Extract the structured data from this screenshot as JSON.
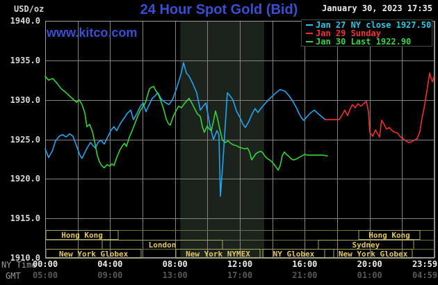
{
  "header": {
    "unit_label": "USD/oz",
    "title": "24 Hour Spot Gold (Bid)",
    "datetime": "January 30, 2023 17:35",
    "watermark": "www.kitco.com"
  },
  "colors": {
    "kitco_blue": "#3a4fd0",
    "cyan_series": "#22a6f2",
    "red_series": "#f23030",
    "green_series": "#35d339",
    "band": "#1c231c",
    "grid": "#848484",
    "plot_border": "#9e9e9e",
    "session_border": "#a8a85e",
    "session_text": "#e2c565",
    "session_separator": "#70703e"
  },
  "legend": {
    "items": [
      {
        "label": "Jan 27 NY close 1927.50",
        "color": "#2fc9e6"
      },
      {
        "label": "Jan 29 Sunday",
        "color": "#ef3434"
      },
      {
        "label": "Jan 30 Last 1922.90",
        "color": "#3bd34d"
      }
    ]
  },
  "axes": {
    "ny_time_label": "NY Time",
    "gmt_label": "GMT",
    "x_ticks": [
      {
        "h": 0,
        "ny": "00:00",
        "gmt": "05:00"
      },
      {
        "h": 4,
        "ny": "04:00",
        "gmt": "09:00"
      },
      {
        "h": 8,
        "ny": "08:00",
        "gmt": "13:00"
      },
      {
        "h": 12,
        "ny": "12:00",
        "gmt": "17:00"
      },
      {
        "h": 16,
        "ny": "16:00",
        "gmt": "21:00"
      },
      {
        "h": 20,
        "ny": "20:00",
        "gmt": "01:00"
      },
      {
        "h": 23.98,
        "ny": "23:59",
        "gmt": "04:59"
      }
    ],
    "y_ticks": [
      {
        "v": 1940,
        "label": "1940.0"
      },
      {
        "v": 1935,
        "label": "1935.0"
      },
      {
        "v": 1930,
        "label": "1930.0"
      },
      {
        "v": 1925,
        "label": "1925.0"
      },
      {
        "v": 1920,
        "label": "1920.0"
      },
      {
        "v": 1915,
        "label": "1915.0"
      },
      {
        "v": 1910,
        "label": "1910.0"
      }
    ]
  },
  "sessions": {
    "rows": [
      {
        "boxes": [
          {
            "label": "Hong Kong",
            "start": 0.05,
            "end": 4.5
          },
          {
            "label": "Hong Kong",
            "start": 19.33,
            "end": 23.1
          }
        ]
      },
      {
        "boxes": [
          {
            "label": "London",
            "start": 3.51,
            "end": 10.93
          },
          {
            "label": "Sydney",
            "start": 16.84,
            "end": 22.71
          }
        ]
      },
      {
        "boxes": [
          {
            "label": "New York Globex",
            "start": 0.05,
            "end": 5.91
          },
          {
            "label": "New York NYMEX",
            "start": 8.06,
            "end": 13.24
          },
          {
            "label": "NY Globex",
            "start": 13.41,
            "end": 17.23
          },
          {
            "label": "",
            "start": 17.23,
            "end": 17.79
          },
          {
            "label": "New York Globex",
            "start": 17.79,
            "end": 22.63
          }
        ]
      }
    ]
  },
  "chart_data": {
    "type": "line",
    "title": "24 Hour Spot Gold (Bid)",
    "xlabel": "NY Time / GMT (hours)",
    "ylabel": "USD/oz",
    "ylim": [
      1910,
      1940
    ],
    "xlim_hours": [
      0,
      24
    ],
    "grid": true,
    "legend_position": "top-right",
    "session_band_hours": [
      8.33,
      13.5
    ],
    "series": [
      {
        "name": "Jan 27 NY close 1927.50",
        "color": "#22a6f2",
        "points": [
          [
            0,
            1923.8
          ],
          [
            0.21,
            1922.7
          ],
          [
            0.43,
            1923.5
          ],
          [
            0.64,
            1924.8
          ],
          [
            0.86,
            1925.4
          ],
          [
            1.07,
            1925.6
          ],
          [
            1.29,
            1925.3
          ],
          [
            1.5,
            1925.7
          ],
          [
            1.71,
            1925.4
          ],
          [
            1.93,
            1924.2
          ],
          [
            2.14,
            1923.0
          ],
          [
            2.27,
            1922.6
          ],
          [
            2.53,
            1923.7
          ],
          [
            2.79,
            1924.6
          ],
          [
            2.91,
            1924.3
          ],
          [
            3.09,
            1923.9
          ],
          [
            3.26,
            1924.6
          ],
          [
            3.43,
            1924.9
          ],
          [
            3.64,
            1924.4
          ],
          [
            3.9,
            1925.5
          ],
          [
            4.07,
            1926.2
          ],
          [
            4.24,
            1926.6
          ],
          [
            4.41,
            1926.1
          ],
          [
            4.63,
            1927.0
          ],
          [
            4.84,
            1927.6
          ],
          [
            5.06,
            1928.3
          ],
          [
            5.27,
            1928.7
          ],
          [
            5.44,
            1927.5
          ],
          [
            5.66,
            1928.3
          ],
          [
            5.87,
            1929.2
          ],
          [
            6.04,
            1929.6
          ],
          [
            6.21,
            1928.5
          ],
          [
            6.39,
            1929.3
          ],
          [
            6.6,
            1930.2
          ],
          [
            6.77,
            1930.5
          ],
          [
            6.94,
            1930.9
          ],
          [
            7.16,
            1930.1
          ],
          [
            7.37,
            1929.7
          ],
          [
            7.63,
            1929.4
          ],
          [
            7.84,
            1930.0
          ],
          [
            8.06,
            1931.2
          ],
          [
            8.27,
            1932.6
          ],
          [
            8.4,
            1933.5
          ],
          [
            8.53,
            1934.7
          ],
          [
            8.7,
            1933.4
          ],
          [
            8.87,
            1933.0
          ],
          [
            9.09,
            1932.1
          ],
          [
            9.34,
            1930.9
          ],
          [
            9.56,
            1928.7
          ],
          [
            9.77,
            1929.3
          ],
          [
            9.9,
            1929.6
          ],
          [
            10.16,
            1926.7
          ],
          [
            10.37,
            1925.0
          ],
          [
            10.59,
            1926.1
          ],
          [
            10.71,
            1925.6
          ],
          [
            10.8,
            1917.8
          ],
          [
            10.93,
            1921.3
          ],
          [
            11.06,
            1925.5
          ],
          [
            11.23,
            1930.9
          ],
          [
            11.4,
            1930.5
          ],
          [
            11.57,
            1930.0
          ],
          [
            11.79,
            1928.6
          ],
          [
            12.0,
            1927.8
          ],
          [
            12.17,
            1927.0
          ],
          [
            12.34,
            1926.5
          ],
          [
            12.56,
            1927.3
          ],
          [
            12.77,
            1928.3
          ],
          [
            12.94,
            1928.9
          ],
          [
            13.11,
            1928.4
          ],
          [
            13.33,
            1929.0
          ],
          [
            13.54,
            1929.5
          ],
          [
            13.76,
            1930.0
          ],
          [
            13.97,
            1930.4
          ],
          [
            14.23,
            1930.9
          ],
          [
            14.49,
            1931.3
          ],
          [
            14.79,
            1931.1
          ],
          [
            15.04,
            1930.5
          ],
          [
            15.3,
            1929.7
          ],
          [
            15.51,
            1928.9
          ],
          [
            15.64,
            1928.3
          ],
          [
            15.81,
            1927.7
          ],
          [
            15.94,
            1927.4
          ],
          [
            16.11,
            1927.8
          ],
          [
            16.33,
            1928.3
          ],
          [
            16.59,
            1928.7
          ],
          [
            16.8,
            1928.3
          ],
          [
            16.97,
            1928.0
          ],
          [
            17.14,
            1927.7
          ],
          [
            17.27,
            1927.5
          ]
        ]
      },
      {
        "name": "Jan 29 Sunday",
        "color": "#f23030",
        "points": [
          [
            17.27,
            1927.5
          ],
          [
            18.13,
            1927.5
          ],
          [
            18.34,
            1928.2
          ],
          [
            18.47,
            1928.7
          ],
          [
            18.64,
            1928.0
          ],
          [
            18.81,
            1928.9
          ],
          [
            18.94,
            1929.4
          ],
          [
            19.11,
            1929.0
          ],
          [
            19.29,
            1929.5
          ],
          [
            19.46,
            1929.2
          ],
          [
            19.63,
            1929.5
          ],
          [
            19.8,
            1929.8
          ],
          [
            19.93,
            1928.5
          ],
          [
            20.01,
            1925.9
          ],
          [
            20.19,
            1925.4
          ],
          [
            20.36,
            1926.2
          ],
          [
            20.49,
            1925.7
          ],
          [
            20.61,
            1925.3
          ],
          [
            20.74,
            1927.4
          ],
          [
            20.87,
            1927.0
          ],
          [
            21.04,
            1926.3
          ],
          [
            21.21,
            1926.5
          ],
          [
            21.39,
            1926.1
          ],
          [
            21.56,
            1925.9
          ],
          [
            21.73,
            1925.8
          ],
          [
            21.9,
            1925.3
          ],
          [
            22.07,
            1925.1
          ],
          [
            22.24,
            1924.8
          ],
          [
            22.41,
            1924.6
          ],
          [
            22.59,
            1924.7
          ],
          [
            22.76,
            1924.9
          ],
          [
            22.93,
            1925.1
          ],
          [
            23.1,
            1926.0
          ],
          [
            23.23,
            1927.7
          ],
          [
            23.36,
            1929.0
          ],
          [
            23.49,
            1930.6
          ],
          [
            23.61,
            1932.2
          ],
          [
            23.7,
            1933.4
          ],
          [
            23.79,
            1932.7
          ],
          [
            23.87,
            1932.3
          ],
          [
            23.96,
            1932.9
          ]
        ]
      },
      {
        "name": "Jan 30 Last 1922.90",
        "color": "#35d339",
        "points": [
          [
            0,
            1933.0
          ],
          [
            0.21,
            1932.5
          ],
          [
            0.47,
            1932.7
          ],
          [
            0.73,
            1932.1
          ],
          [
            0.99,
            1931.4
          ],
          [
            1.24,
            1931.0
          ],
          [
            1.5,
            1930.5
          ],
          [
            1.71,
            1930.1
          ],
          [
            1.93,
            1929.7
          ],
          [
            2.1,
            1930.0
          ],
          [
            2.27,
            1929.4
          ],
          [
            2.44,
            1928.4
          ],
          [
            2.57,
            1926.6
          ],
          [
            2.74,
            1926.9
          ],
          [
            2.91,
            1926.0
          ],
          [
            3.04,
            1924.8
          ],
          [
            3.21,
            1923.0
          ],
          [
            3.34,
            1922.2
          ],
          [
            3.47,
            1921.7
          ],
          [
            3.64,
            1921.4
          ],
          [
            3.81,
            1921.8
          ],
          [
            3.99,
            1921.6
          ],
          [
            4.11,
            1921.9
          ],
          [
            4.24,
            1921.7
          ],
          [
            4.41,
            1922.7
          ],
          [
            4.59,
            1923.6
          ],
          [
            4.76,
            1924.2
          ],
          [
            4.89,
            1924.5
          ],
          [
            5.01,
            1924.1
          ],
          [
            5.19,
            1925.3
          ],
          [
            5.36,
            1926.1
          ],
          [
            5.53,
            1927.0
          ],
          [
            5.7,
            1927.9
          ],
          [
            5.87,
            1928.7
          ],
          [
            6.04,
            1929.2
          ],
          [
            6.17,
            1929.6
          ],
          [
            6.3,
            1930.5
          ],
          [
            6.43,
            1931.4
          ],
          [
            6.56,
            1931.6
          ],
          [
            6.69,
            1931.7
          ],
          [
            6.81,
            1931.2
          ],
          [
            6.99,
            1930.6
          ],
          [
            7.11,
            1930.0
          ],
          [
            7.29,
            1928.9
          ],
          [
            7.46,
            1927.6
          ],
          [
            7.59,
            1927.0
          ],
          [
            7.71,
            1926.8
          ],
          [
            7.89,
            1927.9
          ],
          [
            8.06,
            1928.6
          ],
          [
            8.23,
            1929.2
          ],
          [
            8.4,
            1929.0
          ],
          [
            8.57,
            1929.5
          ],
          [
            8.74,
            1929.9
          ],
          [
            8.87,
            1930.2
          ],
          [
            9.04,
            1929.6
          ],
          [
            9.21,
            1928.9
          ],
          [
            9.39,
            1928.2
          ],
          [
            9.56,
            1927.9
          ],
          [
            9.69,
            1926.6
          ],
          [
            9.81,
            1925.9
          ],
          [
            9.99,
            1926.7
          ],
          [
            10.11,
            1926.3
          ],
          [
            10.24,
            1926.1
          ],
          [
            10.37,
            1927.3
          ],
          [
            10.5,
            1928.6
          ],
          [
            10.63,
            1927.6
          ],
          [
            10.76,
            1926.3
          ],
          [
            10.93,
            1924.9
          ],
          [
            11.1,
            1924.6
          ],
          [
            11.27,
            1924.8
          ],
          [
            11.44,
            1924.5
          ],
          [
            11.61,
            1924.3
          ],
          [
            11.79,
            1924.2
          ],
          [
            11.96,
            1924.0
          ],
          [
            12.13,
            1923.9
          ],
          [
            12.3,
            1923.8
          ],
          [
            12.47,
            1923.9
          ],
          [
            12.6,
            1923.4
          ],
          [
            12.73,
            1922.4
          ],
          [
            12.86,
            1922.8
          ],
          [
            12.99,
            1923.2
          ],
          [
            13.16,
            1923.4
          ],
          [
            13.29,
            1923.5
          ],
          [
            13.41,
            1923.3
          ],
          [
            13.54,
            1922.9
          ],
          [
            13.67,
            1922.6
          ],
          [
            13.84,
            1922.4
          ],
          [
            14.01,
            1922.1
          ],
          [
            14.19,
            1921.6
          ],
          [
            14.36,
            1921.1
          ],
          [
            14.49,
            1921.7
          ],
          [
            14.61,
            1922.9
          ],
          [
            14.74,
            1923.4
          ],
          [
            14.87,
            1923.1
          ],
          [
            15.0,
            1922.9
          ],
          [
            15.13,
            1922.6
          ],
          [
            15.3,
            1922.4
          ],
          [
            15.47,
            1922.5
          ],
          [
            15.64,
            1922.7
          ],
          [
            15.81,
            1922.9
          ],
          [
            15.99,
            1923.1
          ],
          [
            16.2,
            1923.0
          ],
          [
            16.5,
            1923.0
          ],
          [
            16.84,
            1923.0
          ],
          [
            17.14,
            1923.0
          ],
          [
            17.4,
            1922.9
          ]
        ]
      }
    ]
  }
}
